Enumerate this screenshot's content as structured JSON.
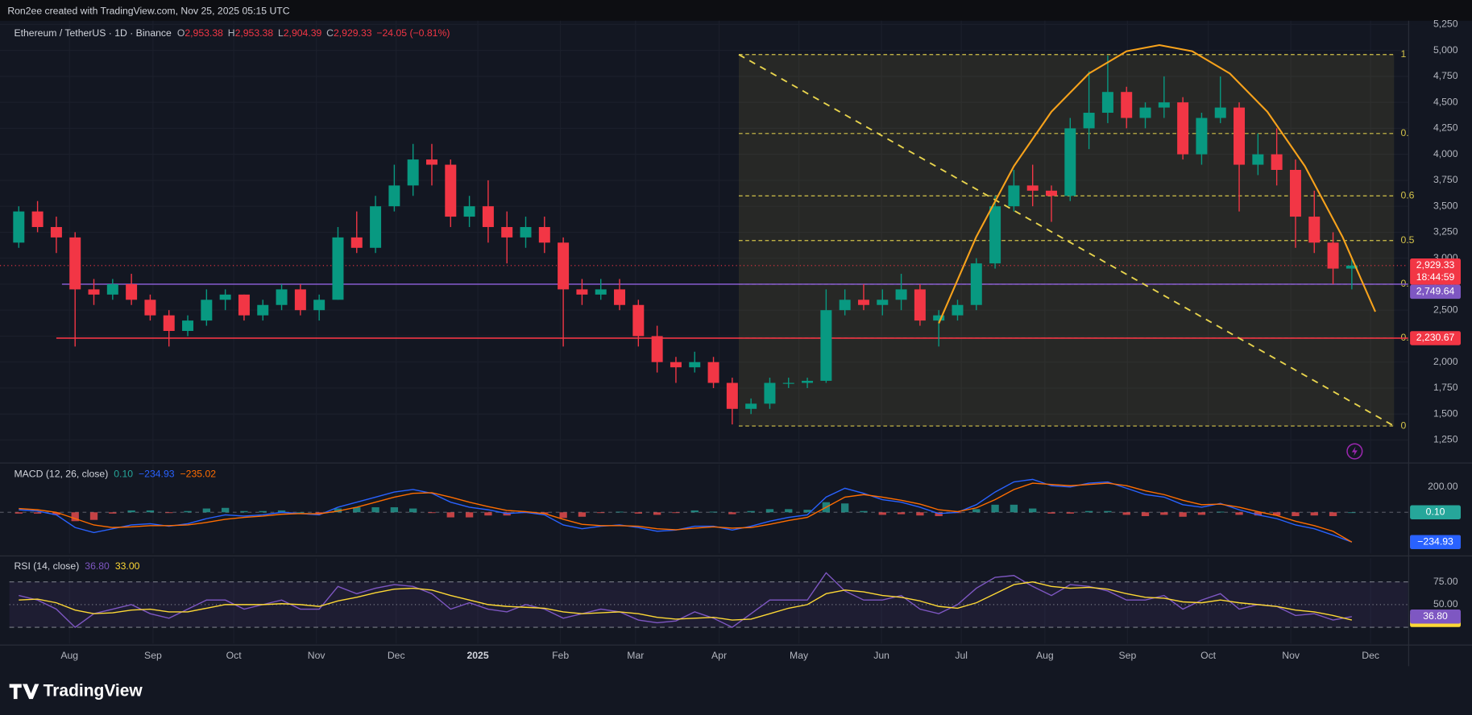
{
  "header": {
    "attribution": "Ron2ee created with TradingView.com, Nov 25, 2025 05:15 UTC"
  },
  "chart_data": [
    {
      "type": "candlestick",
      "title": "Ethereum / TetherUS · 1D · Binance",
      "legend_values": [
        {
          "label": "O",
          "value": "2,953.38"
        },
        {
          "label": "H",
          "value": "2,953.38"
        },
        {
          "label": "L",
          "value": "2,904.39"
        },
        {
          "label": "C",
          "value": "2,929.33"
        }
      ],
      "change": "−24.05 (−0.81%)",
      "open": [
        3150,
        3450,
        3300,
        3200,
        2700,
        2650,
        2750,
        2600,
        2450,
        2300,
        2400,
        2600,
        2650,
        2450,
        2550,
        2700,
        2500,
        2600,
        3200,
        3100,
        3500,
        3700,
        3950,
        3900,
        3400,
        3500,
        3300,
        3200,
        3300,
        3150,
        2700,
        2650,
        2700,
        2550,
        2250,
        2000,
        1950,
        2000,
        1800,
        1550,
        1600,
        1800,
        1800,
        1820,
        2500,
        2600,
        2550,
        2600,
        2700,
        2400,
        2450,
        2550,
        2950,
        3500,
        3700,
        3650,
        3600,
        4250,
        4400,
        4600,
        4350,
        4450,
        4500,
        4000,
        4350,
        4450,
        3900,
        4000,
        3850,
        3400,
        3150,
        2900
      ],
      "high": [
        3500,
        3550,
        3400,
        3250,
        2800,
        2800,
        2850,
        2650,
        2500,
        2450,
        2700,
        2700,
        2650,
        2600,
        2750,
        2750,
        2650,
        3300,
        3450,
        3600,
        3900,
        4100,
        4100,
        3950,
        3600,
        3750,
        3450,
        3400,
        3400,
        3200,
        2800,
        2800,
        2800,
        2600,
        2350,
        2050,
        2100,
        2050,
        1850,
        1650,
        1850,
        1850,
        1850,
        2700,
        2700,
        2750,
        2700,
        2850,
        2750,
        2500,
        2600,
        3000,
        3600,
        3850,
        3900,
        3700,
        4350,
        4800,
        4950,
        4650,
        4500,
        4750,
        4550,
        4400,
        4750,
        4500,
        4200,
        4250,
        3950,
        3650,
        3250,
        3000
      ],
      "low": [
        3100,
        3250,
        3050,
        2150,
        2550,
        2600,
        2550,
        2400,
        2150,
        2250,
        2350,
        2500,
        2400,
        2400,
        2500,
        2450,
        2400,
        2600,
        3050,
        3050,
        3450,
        3600,
        3700,
        3300,
        3300,
        3150,
        2950,
        3100,
        3050,
        2150,
        2550,
        2600,
        2500,
        2150,
        1900,
        1800,
        1900,
        1750,
        1400,
        1500,
        1550,
        1750,
        1750,
        1800,
        2450,
        2500,
        2450,
        2500,
        2350,
        2150,
        2400,
        2500,
        2900,
        3450,
        3500,
        3350,
        3550,
        4050,
        4300,
        4250,
        4250,
        4350,
        3950,
        3900,
        4300,
        3450,
        3800,
        3700,
        3100,
        3050,
        2750,
        2700
      ],
      "close": [
        3450,
        3300,
        3200,
        2700,
        2650,
        2750,
        2600,
        2450,
        2300,
        2400,
        2600,
        2650,
        2450,
        2550,
        2700,
        2500,
        2600,
        3200,
        3100,
        3500,
        3700,
        3950,
        3900,
        3400,
        3500,
        3300,
        3200,
        3300,
        3150,
        2700,
        2650,
        2700,
        2550,
        2250,
        2000,
        1950,
        2000,
        1800,
        1550,
        1600,
        1800,
        1800,
        1820,
        2500,
        2600,
        2550,
        2600,
        2700,
        2400,
        2450,
        2550,
        2950,
        3500,
        3700,
        3650,
        3600,
        4250,
        4400,
        4600,
        4350,
        4450,
        4500,
        4000,
        4350,
        4450,
        3900,
        4000,
        3850,
        3400,
        3150,
        2900,
        2929.33
      ],
      "up_color": "#089981",
      "down_color": "#f23645",
      "xlim": [
        -0.5,
        74
      ],
      "ylim": [
        1042,
        5286
      ],
      "yticks": [
        {
          "value": 5250,
          "label": "5,250"
        },
        {
          "value": 5000,
          "label": "5,000"
        },
        {
          "value": 4750,
          "label": "4,750"
        },
        {
          "value": 4500,
          "label": "4,500"
        },
        {
          "value": 4250,
          "label": "4,250"
        },
        {
          "value": 4000,
          "label": "4,000"
        },
        {
          "value": 3750,
          "label": "3,750"
        },
        {
          "value": 3500,
          "label": "3,500"
        },
        {
          "value": 3250,
          "label": "3,250"
        },
        {
          "value": 3000,
          "label": "3,000"
        },
        {
          "value": 2750,
          "label": "2,750"
        },
        {
          "value": 2500,
          "label": "2,500"
        },
        {
          "value": 2250,
          "label": "2,250"
        },
        {
          "value": 2000,
          "label": "2,000"
        },
        {
          "value": 1750,
          "label": "1,750"
        },
        {
          "value": 1500,
          "label": "1,500"
        },
        {
          "value": 1250,
          "label": "1,250"
        }
      ],
      "grid": true,
      "last_price": {
        "value": 2929.33,
        "label": "2,929.33",
        "countdown": "18:44:59",
        "color": "#f23645"
      },
      "hlines": [
        {
          "value": 2749.64,
          "label": "2,749.64",
          "from": 2.3,
          "color": "#7e57c2"
        },
        {
          "value": 2230.67,
          "label": "2,230.67",
          "from": 2,
          "color": "#f23645"
        }
      ],
      "fib": {
        "from": 38.35,
        "to": 73.25,
        "color": "#d4c34a",
        "levels": [
          {
            "value": 4960,
            "label": "1"
          },
          {
            "value": 4200,
            "label": "0."
          },
          {
            "value": 3600,
            "label": "0.6"
          },
          {
            "value": 3170,
            "label": "0.5"
          },
          {
            "value": 2749.64,
            "label": "0."
          },
          {
            "value": 2230.67,
            "label": "0."
          },
          {
            "value": 1385,
            "label": "0"
          }
        ]
      },
      "trendline": {
        "x": [
          38.35,
          73.25
        ],
        "y": [
          4960,
          1385
        ],
        "color": "#e8d44d"
      },
      "arc": {
        "x": [
          49,
          51,
          53,
          55,
          57,
          59,
          60.75,
          62.5,
          64.5,
          66.5,
          68.5,
          70.5,
          72.25
        ],
        "y": [
          2373,
          3207,
          3886,
          4410,
          4778,
          4992,
          5051,
          4992,
          4778,
          4410,
          3886,
          3207,
          2485
        ],
        "color": "#f7a21b"
      }
    },
    {
      "type": "line",
      "title": "MACD (12, 26, close)",
      "xlim": [
        -0.5,
        74
      ],
      "ylim": [
        -326,
        378
      ],
      "yticks": [
        {
          "value": 200,
          "label": "200.00"
        }
      ],
      "series": [
        {
          "type": "bar",
          "color": "#26a69a",
          "up_color": "#26a69a",
          "down_color": "#ff5252",
          "last_label": "0.10",
          "values": [
            -10,
            -10,
            -20,
            -70,
            -60,
            -10,
            15,
            15,
            -5,
            10,
            30,
            35,
            10,
            10,
            15,
            0,
            -8,
            30,
            40,
            40,
            40,
            30,
            -5,
            -40,
            -40,
            -25,
            -25,
            -5,
            -10,
            -45,
            -35,
            -5,
            5,
            -10,
            -20,
            -2,
            15,
            5,
            -15,
            10,
            25,
            25,
            20,
            80,
            70,
            10,
            -20,
            -15,
            -25,
            -30,
            -5,
            25,
            60,
            60,
            30,
            -10,
            -10,
            10,
            10,
            -20,
            -30,
            -20,
            -35,
            -20,
            5,
            -20,
            -25,
            -25,
            -30,
            -25,
            -30,
            0.1
          ]
        },
        {
          "color": "#2962ff",
          "last_label": "−234.93",
          "values": [
            20,
            10,
            -20,
            -120,
            -160,
            -130,
            -100,
            -90,
            -110,
            -90,
            -50,
            -20,
            -30,
            -20,
            0,
            -10,
            -20,
            40,
            80,
            120,
            160,
            180,
            150,
            80,
            40,
            20,
            -10,
            0,
            -20,
            -100,
            -130,
            -110,
            -100,
            -120,
            -150,
            -140,
            -110,
            -110,
            -140,
            -110,
            -70,
            -40,
            -20,
            120,
            190,
            150,
            100,
            80,
            40,
            -10,
            0,
            60,
            160,
            240,
            260,
            210,
            200,
            230,
            240,
            190,
            140,
            120,
            60,
            40,
            70,
            20,
            -20,
            -50,
            -100,
            -130,
            -180,
            -234.93
          ]
        },
        {
          "color": "#ff6d00",
          "last_label": "−235.02",
          "values": [
            30,
            20,
            0,
            -50,
            -100,
            -120,
            -115,
            -105,
            -105,
            -100,
            -80,
            -55,
            -40,
            -30,
            -15,
            -10,
            -12,
            10,
            40,
            80,
            120,
            150,
            155,
            120,
            80,
            45,
            15,
            5,
            -10,
            -55,
            -95,
            -105,
            -105,
            -110,
            -130,
            -138,
            -125,
            -115,
            -125,
            -120,
            -95,
            -65,
            -40,
            40,
            120,
            140,
            120,
            95,
            65,
            20,
            5,
            35,
            100,
            180,
            230,
            220,
            210,
            220,
            230,
            210,
            170,
            140,
            95,
            60,
            65,
            40,
            5,
            -25,
            -70,
            -105,
            -150,
            -235.02
          ]
        }
      ]
    },
    {
      "type": "line",
      "title": "RSI (14, close)",
      "xlim": [
        -0.5,
        74
      ],
      "ylim": [
        7,
        101
      ],
      "yticks": [
        {
          "value": 75,
          "label": "75.00"
        },
        {
          "value": 50,
          "label": "50.00"
        }
      ],
      "bands": [
        75,
        50,
        25
      ],
      "band_fill": "#7e57c2",
      "xticks": [
        {
          "value": 2.7,
          "label": "Aug"
        },
        {
          "value": 7.15,
          "label": "Sep"
        },
        {
          "value": 11.45,
          "label": "Oct"
        },
        {
          "value": 15.85,
          "label": "Nov"
        },
        {
          "value": 20.1,
          "label": "Dec"
        },
        {
          "value": 24.45,
          "label": "2025"
        },
        {
          "value": 28.85,
          "label": "Feb"
        },
        {
          "value": 32.85,
          "label": "Mar"
        },
        {
          "value": 37.3,
          "label": "Apr"
        },
        {
          "value": 41.55,
          "label": "May"
        },
        {
          "value": 45.95,
          "label": "Jun"
        },
        {
          "value": 50.2,
          "label": "Jul"
        },
        {
          "value": 54.65,
          "label": "Aug"
        },
        {
          "value": 59.05,
          "label": "Sep"
        },
        {
          "value": 63.35,
          "label": "Oct"
        },
        {
          "value": 67.75,
          "label": "Nov"
        },
        {
          "value": 72,
          "label": "Dec"
        }
      ],
      "series": [
        {
          "color": "#7e57c2",
          "last_label": "36.80",
          "values": [
            60,
            55,
            45,
            25,
            40,
            45,
            50,
            40,
            35,
            45,
            55,
            55,
            45,
            50,
            55,
            45,
            45,
            70,
            62,
            68,
            72,
            70,
            62,
            45,
            52,
            45,
            42,
            50,
            45,
            35,
            40,
            45,
            42,
            33,
            30,
            32,
            42,
            35,
            25,
            40,
            55,
            55,
            55,
            85,
            65,
            55,
            55,
            60,
            45,
            40,
            50,
            68,
            80,
            82,
            70,
            60,
            72,
            70,
            65,
            55,
            55,
            60,
            45,
            55,
            62,
            45,
            50,
            48,
            38,
            40,
            33,
            36.8
          ]
        },
        {
          "color": "#fdd835",
          "last_label": "33.00",
          "values": [
            55,
            56,
            52,
            44,
            40,
            41,
            44,
            45,
            42,
            42,
            46,
            50,
            50,
            50,
            51,
            50,
            48,
            54,
            58,
            63,
            67,
            68,
            66,
            60,
            55,
            50,
            48,
            47,
            46,
            42,
            40,
            41,
            42,
            40,
            36,
            34,
            35,
            36,
            33,
            34,
            40,
            46,
            50,
            62,
            66,
            64,
            60,
            58,
            54,
            48,
            46,
            52,
            62,
            72,
            75,
            70,
            68,
            69,
            67,
            62,
            58,
            57,
            53,
            52,
            55,
            52,
            50,
            48,
            44,
            42,
            38,
            33.0
          ]
        }
      ]
    }
  ],
  "footer": {
    "brand": "TradingView"
  }
}
